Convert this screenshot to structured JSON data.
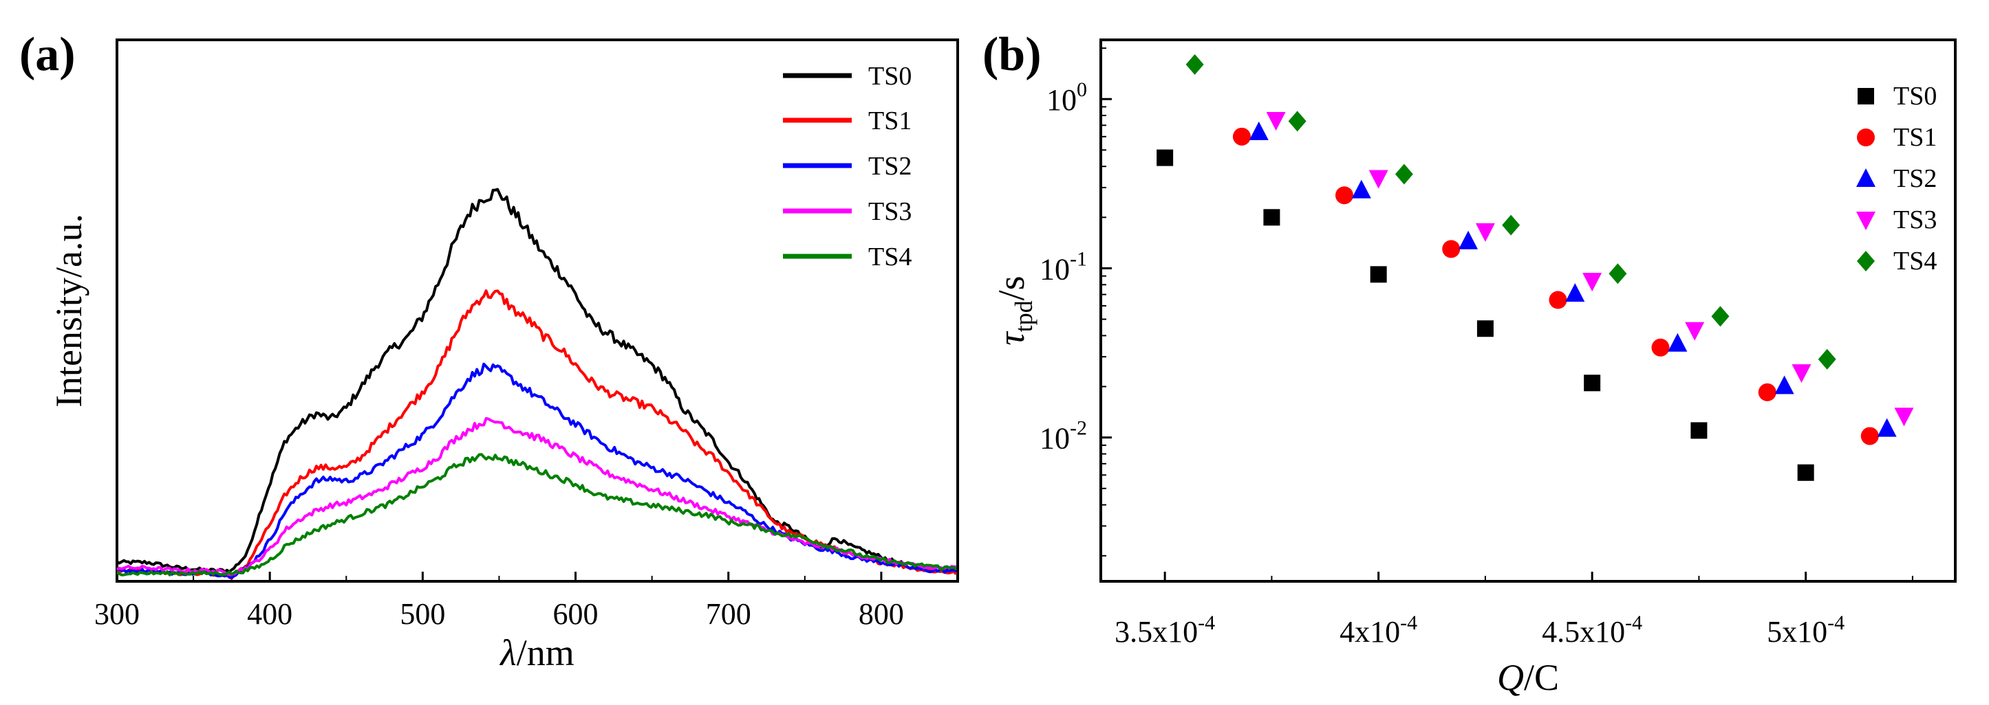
{
  "chart_data": [
    {
      "panel_label": "(a)",
      "type": "line",
      "xlabel_symbol": "λ",
      "xlabel_unit": "/nm",
      "ylabel": "Intensity/a.u.",
      "xlim": [
        300,
        850
      ],
      "ylim": [
        0,
        100
      ],
      "x_ticks": [
        "300",
        "400",
        "500",
        "600",
        "700",
        "800"
      ],
      "x_tick_values": [
        300,
        400,
        500,
        600,
        700,
        800
      ],
      "legend_position": "top-right",
      "series": [
        {
          "name": "TS0",
          "color": "#000000",
          "x": [
            300,
            320,
            340,
            360,
            375,
            385,
            395,
            405,
            410,
            420,
            430,
            440,
            450,
            460,
            470,
            480,
            490,
            500,
            510,
            520,
            530,
            540,
            550,
            560,
            570,
            580,
            590,
            600,
            610,
            620,
            630,
            640,
            650,
            660,
            670,
            680,
            690,
            700,
            710,
            720,
            730,
            740,
            750,
            760,
            770,
            780,
            790,
            800,
            810,
            820,
            830,
            840,
            850
          ],
          "y": [
            3.5,
            3.5,
            2.5,
            2.0,
            2.0,
            5.0,
            14.0,
            22.0,
            26.0,
            29.0,
            31.0,
            30.0,
            32.0,
            36.0,
            40.0,
            43.0,
            45.0,
            49.0,
            55.0,
            62.0,
            68.0,
            71.0,
            72.0,
            68.0,
            64.0,
            60.0,
            57.0,
            53.0,
            48.0,
            46.0,
            44.0,
            42.0,
            40.0,
            37.0,
            32.0,
            29.0,
            26.0,
            22.0,
            19.0,
            15.0,
            11.0,
            10.0,
            8.0,
            6.0,
            8.0,
            6.5,
            5.5,
            4.5,
            3.5,
            3.0,
            2.5,
            2.0,
            2.0
          ]
        },
        {
          "name": "TS1",
          "color": "#ff0000",
          "x": [
            300,
            320,
            340,
            360,
            375,
            385,
            395,
            405,
            410,
            420,
            430,
            440,
            450,
            460,
            470,
            480,
            490,
            500,
            510,
            520,
            530,
            540,
            550,
            560,
            570,
            580,
            590,
            600,
            610,
            620,
            630,
            640,
            650,
            660,
            670,
            680,
            690,
            700,
            710,
            720,
            730,
            740,
            750,
            760,
            770,
            780,
            790,
            800,
            810,
            820,
            830,
            840,
            850
          ],
          "y": [
            2.0,
            2.0,
            1.5,
            1.5,
            0.8,
            3.0,
            8.0,
            13.0,
            16.0,
            19.0,
            21.0,
            21.0,
            21.0,
            23.0,
            26.0,
            29.0,
            32.0,
            35.0,
            39.0,
            45.0,
            50.0,
            53.0,
            53.0,
            50.0,
            48.0,
            45.0,
            43.0,
            40.0,
            37.0,
            35.0,
            34.0,
            33.0,
            32.0,
            30.0,
            28.0,
            25.0,
            23.0,
            20.0,
            17.0,
            14.0,
            11.0,
            9.0,
            8.0,
            7.0,
            6.0,
            5.0,
            4.0,
            3.5,
            3.0,
            2.5,
            2.0,
            1.8,
            1.5
          ]
        },
        {
          "name": "TS2",
          "color": "#0000ff",
          "x": [
            300,
            320,
            340,
            360,
            375,
            385,
            395,
            405,
            410,
            420,
            430,
            440,
            450,
            460,
            470,
            480,
            490,
            500,
            510,
            520,
            530,
            540,
            550,
            560,
            570,
            580,
            590,
            600,
            610,
            620,
            630,
            640,
            650,
            660,
            670,
            680,
            690,
            700,
            710,
            720,
            730,
            740,
            750,
            760,
            770,
            780,
            790,
            800,
            810,
            820,
            830,
            840,
            850
          ],
          "y": [
            2.0,
            2.0,
            1.5,
            1.5,
            1.0,
            2.5,
            5.5,
            10.0,
            13.0,
            16.0,
            18.5,
            19.0,
            18.5,
            19.5,
            21.0,
            23.0,
            25.0,
            27.0,
            30.0,
            34.0,
            37.5,
            39.5,
            39.0,
            37.0,
            35.0,
            33.0,
            31.0,
            29.0,
            27.0,
            25.0,
            23.5,
            22.0,
            21.0,
            20.0,
            19.0,
            17.5,
            16.0,
            14.5,
            13.0,
            11.0,
            9.5,
            8.0,
            7.0,
            6.0,
            5.5,
            4.5,
            4.0,
            3.5,
            3.0,
            2.5,
            2.0,
            2.0,
            1.8
          ]
        },
        {
          "name": "TS3",
          "color": "#ff00ff",
          "x": [
            300,
            320,
            340,
            360,
            375,
            385,
            395,
            405,
            410,
            420,
            430,
            440,
            450,
            460,
            470,
            480,
            490,
            500,
            510,
            520,
            530,
            540,
            550,
            560,
            570,
            580,
            590,
            600,
            610,
            620,
            630,
            640,
            650,
            660,
            670,
            680,
            690,
            700,
            710,
            720,
            730,
            740,
            750,
            760,
            770,
            780,
            790,
            800,
            810,
            820,
            830,
            840,
            850
          ],
          "y": [
            2.5,
            2.5,
            2.0,
            2.0,
            1.5,
            2.5,
            4.5,
            7.5,
            9.5,
            11.5,
            13.0,
            14.0,
            14.5,
            15.5,
            16.5,
            18.0,
            19.5,
            21.0,
            23.0,
            26.0,
            28.0,
            29.5,
            29.5,
            28.0,
            27.0,
            26.0,
            24.5,
            23.0,
            21.5,
            20.0,
            19.0,
            18.0,
            17.0,
            16.0,
            15.0,
            14.0,
            13.0,
            12.0,
            11.0,
            10.0,
            9.0,
            8.0,
            7.0,
            6.5,
            6.0,
            5.0,
            4.5,
            4.0,
            3.5,
            3.0,
            2.5,
            2.5,
            2.5
          ]
        },
        {
          "name": "TS4",
          "color": "#008000",
          "x": [
            300,
            320,
            340,
            360,
            375,
            385,
            395,
            405,
            410,
            420,
            430,
            440,
            450,
            460,
            470,
            480,
            490,
            500,
            510,
            520,
            530,
            540,
            550,
            560,
            570,
            580,
            590,
            600,
            610,
            620,
            630,
            640,
            650,
            660,
            670,
            680,
            690,
            700,
            710,
            720,
            730,
            740,
            750,
            760,
            770,
            780,
            790,
            800,
            810,
            820,
            830,
            840,
            850
          ],
          "y": [
            1.5,
            1.5,
            1.5,
            1.5,
            1.5,
            2.0,
            3.0,
            5.0,
            6.5,
            8.0,
            9.5,
            10.5,
            11.5,
            12.5,
            13.5,
            14.5,
            16.0,
            17.5,
            19.0,
            21.0,
            22.5,
            23.0,
            23.0,
            22.0,
            21.0,
            20.0,
            19.0,
            18.0,
            16.5,
            15.5,
            15.0,
            14.5,
            14.0,
            13.5,
            13.0,
            12.5,
            12.0,
            11.0,
            10.5,
            10.0,
            9.0,
            8.5,
            8.0,
            7.0,
            6.0,
            5.5,
            4.5,
            4.0,
            3.5,
            3.0,
            3.0,
            2.5,
            2.5
          ]
        }
      ]
    },
    {
      "panel_label": "(b)",
      "type": "scatter",
      "xlabel_symbol": "Q",
      "xlabel_unit": "/C",
      "ylabel_symbol": "τ",
      "ylabel_subscript": "tpd",
      "ylabel_unit": "/s",
      "xlim": [
        0.000335,
        0.000535
      ],
      "ylim_log10": [
        -2.85,
        0.35
      ],
      "y_scale": "log",
      "x_ticks": [
        {
          "mantissa": "3.5x10",
          "exp": "-4",
          "value": 0.00035
        },
        {
          "mantissa": "4x10",
          "exp": "-4",
          "value": 0.0004
        },
        {
          "mantissa": "4.5x10",
          "exp": "-4",
          "value": 0.00045
        },
        {
          "mantissa": "5x10",
          "exp": "-4",
          "value": 0.0005
        }
      ],
      "y_ticks": [
        {
          "base": "10",
          "exp": "0",
          "value": 1
        },
        {
          "base": "10",
          "exp": "-1",
          "value": 0.1
        },
        {
          "base": "10",
          "exp": "-2",
          "value": 0.01
        }
      ],
      "legend_position": "top-right",
      "series": [
        {
          "name": "TS0",
          "color": "#000000",
          "marker": "square",
          "x": [
            0.00035,
            0.000375,
            0.0004,
            0.000425,
            0.00045,
            0.000475,
            0.0005
          ],
          "y": [
            0.45,
            0.2,
            0.092,
            0.044,
            0.021,
            0.011,
            0.0062
          ]
        },
        {
          "name": "TS1",
          "color": "#ff0000",
          "marker": "circle",
          "x": [
            0.000368,
            0.000392,
            0.000417,
            0.000442,
            0.000466,
            0.000491,
            0.000515
          ],
          "y": [
            0.6,
            0.27,
            0.13,
            0.065,
            0.034,
            0.0185,
            0.0102
          ]
        },
        {
          "name": "TS2",
          "color": "#0000ff",
          "marker": "triangle-up",
          "x": [
            0.000372,
            0.000396,
            0.000421,
            0.000446,
            0.00047,
            0.000495,
            0.000519
          ],
          "y": [
            0.64,
            0.29,
            0.145,
            0.071,
            0.036,
            0.0202,
            0.0113
          ]
        },
        {
          "name": "TS3",
          "color": "#ff00ff",
          "marker": "triangle-down",
          "x": [
            0.000376,
            0.0004,
            0.000425,
            0.00045,
            0.000474,
            0.000499,
            0.000523
          ],
          "y": [
            0.75,
            0.34,
            0.165,
            0.084,
            0.043,
            0.0242,
            0.0134
          ]
        },
        {
          "name": "TS4",
          "color": "#008000",
          "marker": "diamond",
          "x": [
            0.000357,
            0.000381,
            0.000406,
            0.000431,
            0.000456,
            0.00048,
            0.000505
          ],
          "y": [
            1.6,
            0.74,
            0.36,
            0.18,
            0.093,
            0.052,
            0.029
          ]
        }
      ]
    }
  ]
}
